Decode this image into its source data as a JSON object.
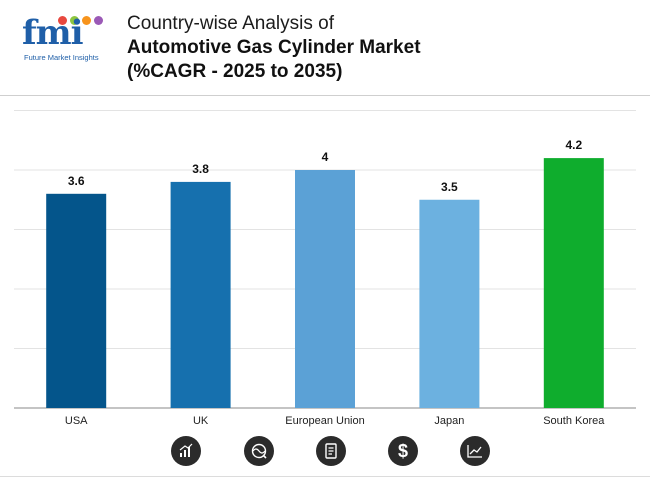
{
  "brand": {
    "logo_text": "fmi",
    "logo_sub": "Future Market Insights",
    "colors": [
      "#e8483f",
      "#8dc63f",
      "#f7941d",
      "#9b59b6"
    ]
  },
  "header": {
    "title_line1": "Country-wise Analysis of",
    "title_line2": "Automotive Gas Cylinder Market",
    "title_line3": "(%CAGR - 2025 to 2035)"
  },
  "chart_data": {
    "type": "bar",
    "categories": [
      "USA",
      "UK",
      "European Union",
      "Japan",
      "South Korea"
    ],
    "values": [
      3.6,
      3.8,
      4,
      3.5,
      4.2
    ],
    "value_labels": [
      "3.6",
      "3.8",
      "4",
      "3.5",
      "4.2"
    ],
    "colors": [
      "#04558b",
      "#1670ae",
      "#5ba1d6",
      "#6cb1e0",
      "#0fad2d"
    ],
    "title": "",
    "xlabel": "",
    "ylabel": "",
    "ylim": [
      0,
      5
    ],
    "grid": true,
    "legend": "none"
  },
  "footer": {
    "icons": [
      "bar-chart-icon",
      "globe-icon",
      "document-icon",
      "dollar-icon",
      "growth-chart-icon"
    ]
  }
}
